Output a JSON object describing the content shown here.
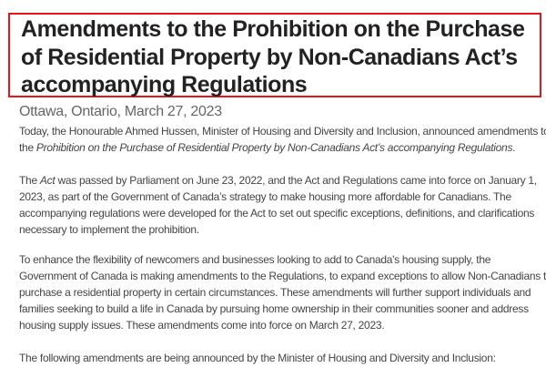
{
  "title": {
    "lines": [
      "Amendments to the Prohibition on the Purchase",
      "of Residential Property by Non-Canadians Act’s",
      "accompanying Regulations"
    ],
    "highlight_color": "#e8141c"
  },
  "dateline": "Ottawa, Ontario, March 27, 2023",
  "paragraphs": {
    "p1": {
      "line1": "Today, the Honourable Ahmed Hussen, Minister of Housing and Diversity and Inclusion, announced amendments to",
      "line2_pre": "the ",
      "line2_italic": "Prohibition on the Purchase of Residential Property by Non-Canadians Act’s accompanying Regulations",
      "line2_post": "."
    },
    "p2": {
      "line1_pre": "The ",
      "line1_italic": "Act",
      "line1_post": " was passed by Parliament on June 23, 2022, and the Act and Regulations came into force on January 1,",
      "line2": "2023, as part of the Government of Canada’s strategy to make housing more affordable for Canadians. The",
      "line3": "accompanying regulations were developed for the Act to set out specific exceptions, definitions, and clarifications",
      "line4": "necessary to implement the prohibition."
    },
    "p3": {
      "lines": [
        "To enhance the flexibility of newcomers and businesses looking to add to Canada's housing supply, the",
        "Government of Canada is making amendments to the Regulations, to expand exceptions to allow Non-Canadians to",
        "purchase a residential property in certain circumstances. These amendments will further support individuals and",
        "families seeking to build a life in Canada by pursuing home ownership in their communities sooner and address",
        "housing supply issues. These amendments come into force on March 27, 2023."
      ]
    },
    "p4": "The following amendments are being announced by the Minister of Housing and Diversity and Inclusion:"
  }
}
